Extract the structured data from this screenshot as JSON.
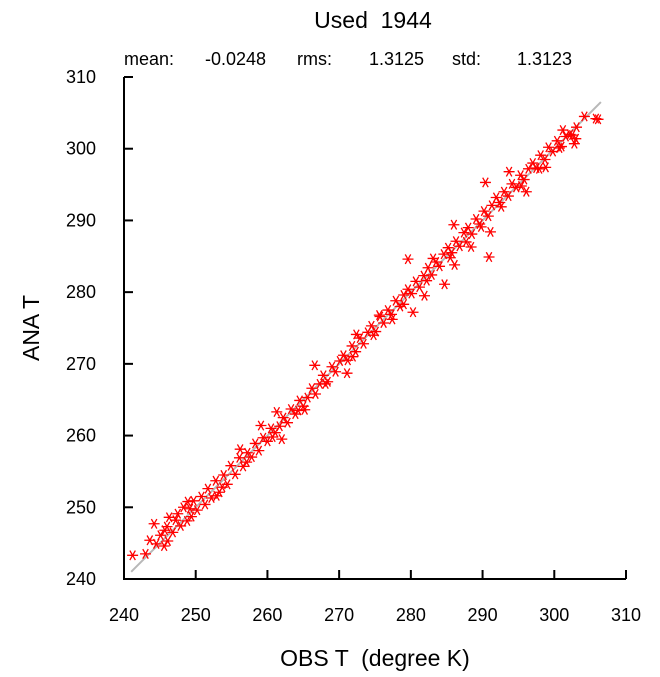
{
  "chart_data": {
    "type": "scatter",
    "title": "Used  1944",
    "stats": {
      "mean_label": "mean:",
      "mean_value": "-0.0248",
      "rms_label": "rms:",
      "rms_value": "1.3125",
      "std_label": "std:",
      "std_value": "1.3123"
    },
    "xlabel": "OBS T  (degree K)",
    "ylabel": "ANA T",
    "xlim": [
      240,
      310
    ],
    "ylim": [
      240,
      310
    ],
    "x_ticks": [
      "240",
      "250",
      "260",
      "270",
      "280",
      "290",
      "300",
      "310"
    ],
    "y_ticks": [
      "240",
      "250",
      "260",
      "270",
      "280",
      "290",
      "300",
      "310"
    ],
    "grid": false,
    "marker": "asterisk",
    "colors": {
      "points": "#ff0000",
      "reference_line": "#b8b8b8",
      "axes": "#000000"
    },
    "reference_line": {
      "x": [
        241,
        306.5
      ],
      "y": [
        241,
        306.5
      ]
    },
    "series": [
      {
        "x": [
          241.2,
          243.0,
          243.6,
          244.5,
          245.1,
          245.6,
          246.0,
          246.3,
          246.8,
          247.2,
          247.5,
          247.9,
          248.3,
          248.8,
          249.2,
          249.7,
          250.2,
          250.8,
          251.3,
          251.7,
          252.2,
          252.8,
          253.3,
          253.9,
          254.4,
          254.9,
          255.5,
          256.1,
          256.6,
          257.2,
          257.8,
          258.3,
          258.8,
          259.4,
          260.0,
          260.5,
          261.1,
          261.7,
          262.2,
          262.8,
          263.3,
          263.9,
          264.5,
          265.0,
          265.6,
          266.2,
          266.7,
          267.3,
          267.8,
          268.4,
          269.0,
          269.5,
          270.1,
          270.6,
          271.2,
          271.8,
          272.3,
          272.9,
          273.4,
          274.0,
          274.5,
          275.1,
          275.7,
          276.2,
          276.8,
          277.3,
          277.9,
          278.5,
          279.0,
          279.6,
          280.1,
          280.7,
          281.2,
          281.8,
          282.4,
          282.9,
          283.5,
          284.0,
          284.6,
          285.2,
          285.7,
          286.3,
          286.8,
          287.4,
          288.0,
          288.5,
          289.1,
          289.6,
          290.2,
          290.8,
          291.3,
          291.9,
          292.4,
          293.0,
          293.6,
          294.1,
          294.7,
          295.3,
          295.8,
          296.4,
          297.0,
          297.5,
          298.1,
          298.7,
          299.2,
          299.8,
          300.4,
          301.0,
          301.6,
          302.2,
          303.0,
          304.2,
          305.8,
          306.1,
          244.2,
          246.1,
          248.9,
          252.9,
          256.2,
          259.1,
          261.3,
          262.0,
          265.2,
          266.6,
          271.1,
          272.4,
          275.6,
          279.6,
          280.3,
          281.9,
          283.1,
          284.7,
          286.0,
          286.1,
          288.4,
          290.4,
          290.9,
          291.1,
          293.7,
          296.1,
          298.8,
          301.2,
          302.8,
          303.1,
          245.7,
          249.4,
          253.7,
          257.1,
          260.7,
          264.3,
          268.1,
          271.9,
          274.8,
          277.4,
          279.0,
          282.2,
          285.5,
          287.7,
          289.8,
          292.6,
          295.4,
          297.9,
          300.7,
          302.5
        ],
        "y": [
          243.3,
          243.5,
          245.4,
          244.9,
          246.1,
          244.6,
          247.3,
          248.6,
          246.5,
          248.2,
          249.1,
          247.4,
          250.0,
          248.1,
          249.8,
          250.9,
          249.6,
          251.5,
          250.4,
          252.6,
          251.3,
          253.7,
          252.1,
          254.5,
          253.2,
          255.8,
          254.6,
          256.9,
          255.7,
          257.6,
          257.0,
          258.9,
          257.9,
          259.7,
          259.2,
          261.0,
          260.4,
          261.3,
          262.5,
          261.8,
          263.7,
          263.0,
          264.9,
          264.1,
          265.3,
          266.6,
          265.8,
          267.2,
          268.4,
          267.5,
          269.6,
          268.9,
          270.4,
          271.2,
          270.5,
          272.5,
          271.7,
          273.6,
          272.8,
          274.4,
          275.3,
          274.5,
          276.6,
          275.7,
          277.5,
          276.9,
          278.8,
          278.0,
          279.6,
          280.4,
          279.8,
          281.5,
          280.7,
          282.3,
          283.4,
          282.4,
          284.2,
          283.6,
          285.3,
          286.2,
          285.5,
          287.1,
          286.4,
          288.3,
          289.0,
          288.1,
          290.2,
          289.5,
          291.3,
          290.6,
          292.1,
          293.2,
          292.5,
          294.0,
          293.4,
          295.1,
          294.6,
          296.3,
          295.7,
          297.2,
          298.0,
          297.3,
          299.1,
          298.5,
          300.2,
          299.6,
          301.1,
          300.3,
          301.7,
          302.0,
          301.4,
          304.5,
          304.2,
          304.1,
          247.7,
          245.3,
          250.8,
          251.6,
          258.1,
          261.4,
          263.3,
          259.5,
          263.6,
          269.8,
          268.7,
          274.1,
          276.8,
          284.6,
          277.2,
          279.5,
          284.7,
          281.1,
          289.4,
          283.8,
          286.3,
          295.3,
          284.9,
          288.4,
          296.8,
          294.0,
          297.4,
          302.6,
          300.7,
          303.0,
          246.8,
          248.7,
          252.8,
          256.3,
          259.8,
          263.5,
          267.2,
          271.0,
          274.0,
          276.2,
          278.3,
          281.6,
          284.8,
          287.0,
          289.1,
          291.9,
          294.8,
          297.2,
          300.1,
          301.9
        ]
      }
    ]
  }
}
